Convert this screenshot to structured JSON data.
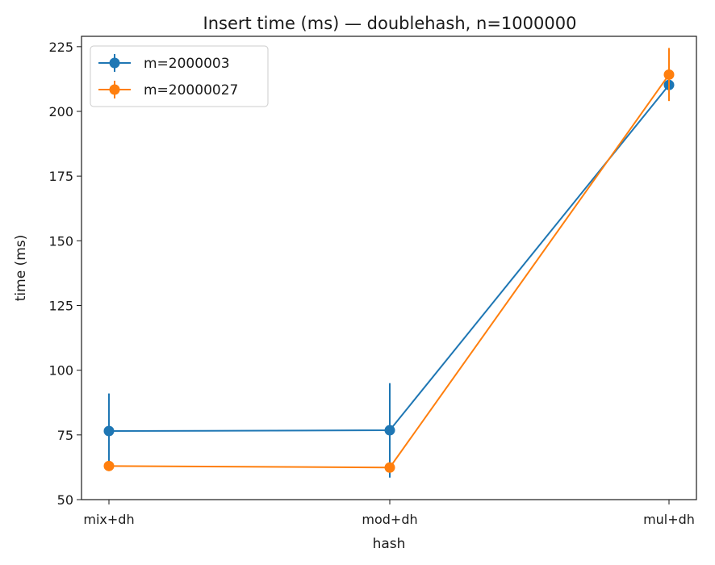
{
  "chart_data": {
    "type": "line",
    "title": "Insert time (ms) — doublehash, n=1000000",
    "xlabel": "hash",
    "ylabel": "time (ms)",
    "categories": [
      "mix+dh",
      "mod+dh",
      "mul+dh"
    ],
    "ylim": [
      50,
      229
    ],
    "yticks": [
      50,
      75,
      100,
      125,
      150,
      175,
      200,
      225
    ],
    "grid": false,
    "legend_position": "top-left",
    "series": [
      {
        "name": "m=2000003",
        "color": "#1f77b4",
        "values": [
          76.5,
          76.8,
          210.2
        ],
        "err_low": [
          62.0,
          58.5,
          209.0
        ],
        "err_high": [
          91.0,
          95.0,
          211.4
        ]
      },
      {
        "name": "m=20000027",
        "color": "#ff7f0e",
        "values": [
          63.0,
          62.4,
          214.2
        ],
        "err_low": [
          62.2,
          61.6,
          204.0
        ],
        "err_high": [
          63.8,
          63.2,
          224.5
        ]
      }
    ]
  }
}
